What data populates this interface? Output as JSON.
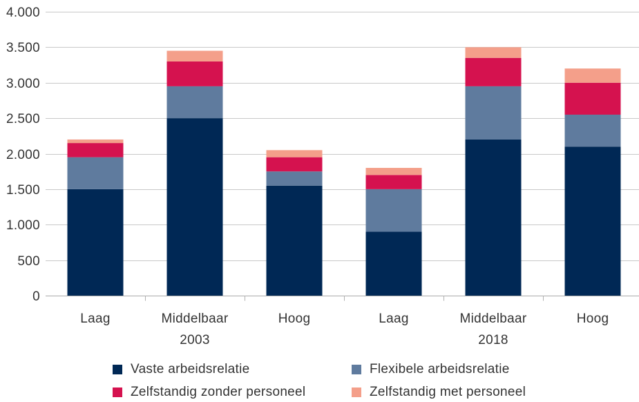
{
  "chart_data": {
    "type": "bar",
    "stacked": true,
    "categories": [
      "Laag",
      "Middelbaar",
      "Hoog",
      "Laag",
      "Middelbaar",
      "Hoog"
    ],
    "group_labels": [
      "2003",
      "2018"
    ],
    "series": [
      {
        "name": "Vaste arbeidsrelatie",
        "color": "#002855",
        "values": [
          1500,
          2500,
          1550,
          900,
          2200,
          2100
        ]
      },
      {
        "name": "Flexibele arbeidsrelatie",
        "color": "#5f7b9e",
        "values": [
          450,
          450,
          200,
          600,
          750,
          450
        ]
      },
      {
        "name": "Zelfstandig zonder personeel",
        "color": "#d5124f",
        "values": [
          200,
          350,
          200,
          200,
          400,
          450
        ]
      },
      {
        "name": "Zelfstandig met personeel",
        "color": "#f49f8a",
        "values": [
          50,
          150,
          100,
          100,
          150,
          200
        ]
      }
    ],
    "ylim": [
      0,
      4000
    ],
    "yticks": [
      0,
      500,
      1000,
      1500,
      2000,
      2500,
      3000,
      3500,
      4000
    ],
    "ytick_labels": [
      "0",
      "500",
      "1.000",
      "1.500",
      "2.000",
      "2.500",
      "3.000",
      "3.500",
      "4.000"
    ],
    "grid": "horizontal",
    "legend": "bottom"
  }
}
